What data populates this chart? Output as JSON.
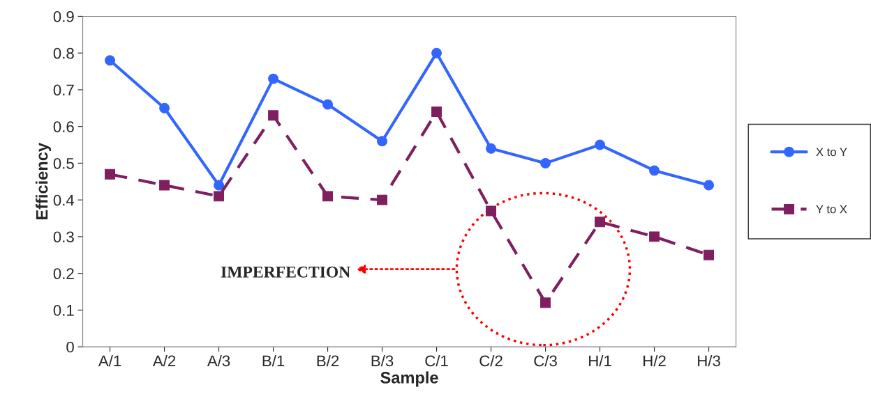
{
  "chart_data": {
    "type": "line",
    "xlabel": "Sample",
    "ylabel": "Efficiency",
    "categories": [
      "A/1",
      "A/2",
      "A/3",
      "B/1",
      "B/2",
      "B/3",
      "C/1",
      "C/2",
      "C/3",
      "H/1",
      "H/2",
      "H/3"
    ],
    "series": [
      {
        "name": "X to Y",
        "color": "#3366ff",
        "marker": "circle",
        "line_style": "solid",
        "values": [
          0.78,
          0.65,
          0.44,
          0.73,
          0.66,
          0.56,
          0.8,
          0.54,
          0.5,
          0.55,
          0.48,
          0.44
        ]
      },
      {
        "name": "Y to X",
        "color": "#7f1f5f",
        "marker": "square",
        "line_style": "dashed",
        "values": [
          0.47,
          0.44,
          0.41,
          0.63,
          0.41,
          0.4,
          0.64,
          0.37,
          0.12,
          0.34,
          0.3,
          0.25
        ]
      }
    ],
    "ylim": [
      0,
      0.9
    ],
    "yticks": [
      0,
      0.1,
      0.2,
      0.3,
      0.4,
      0.5,
      0.6,
      0.7,
      0.8,
      0.9
    ],
    "grid": false,
    "legend": "right",
    "annotations": [
      "IMPERFECTION"
    ]
  }
}
